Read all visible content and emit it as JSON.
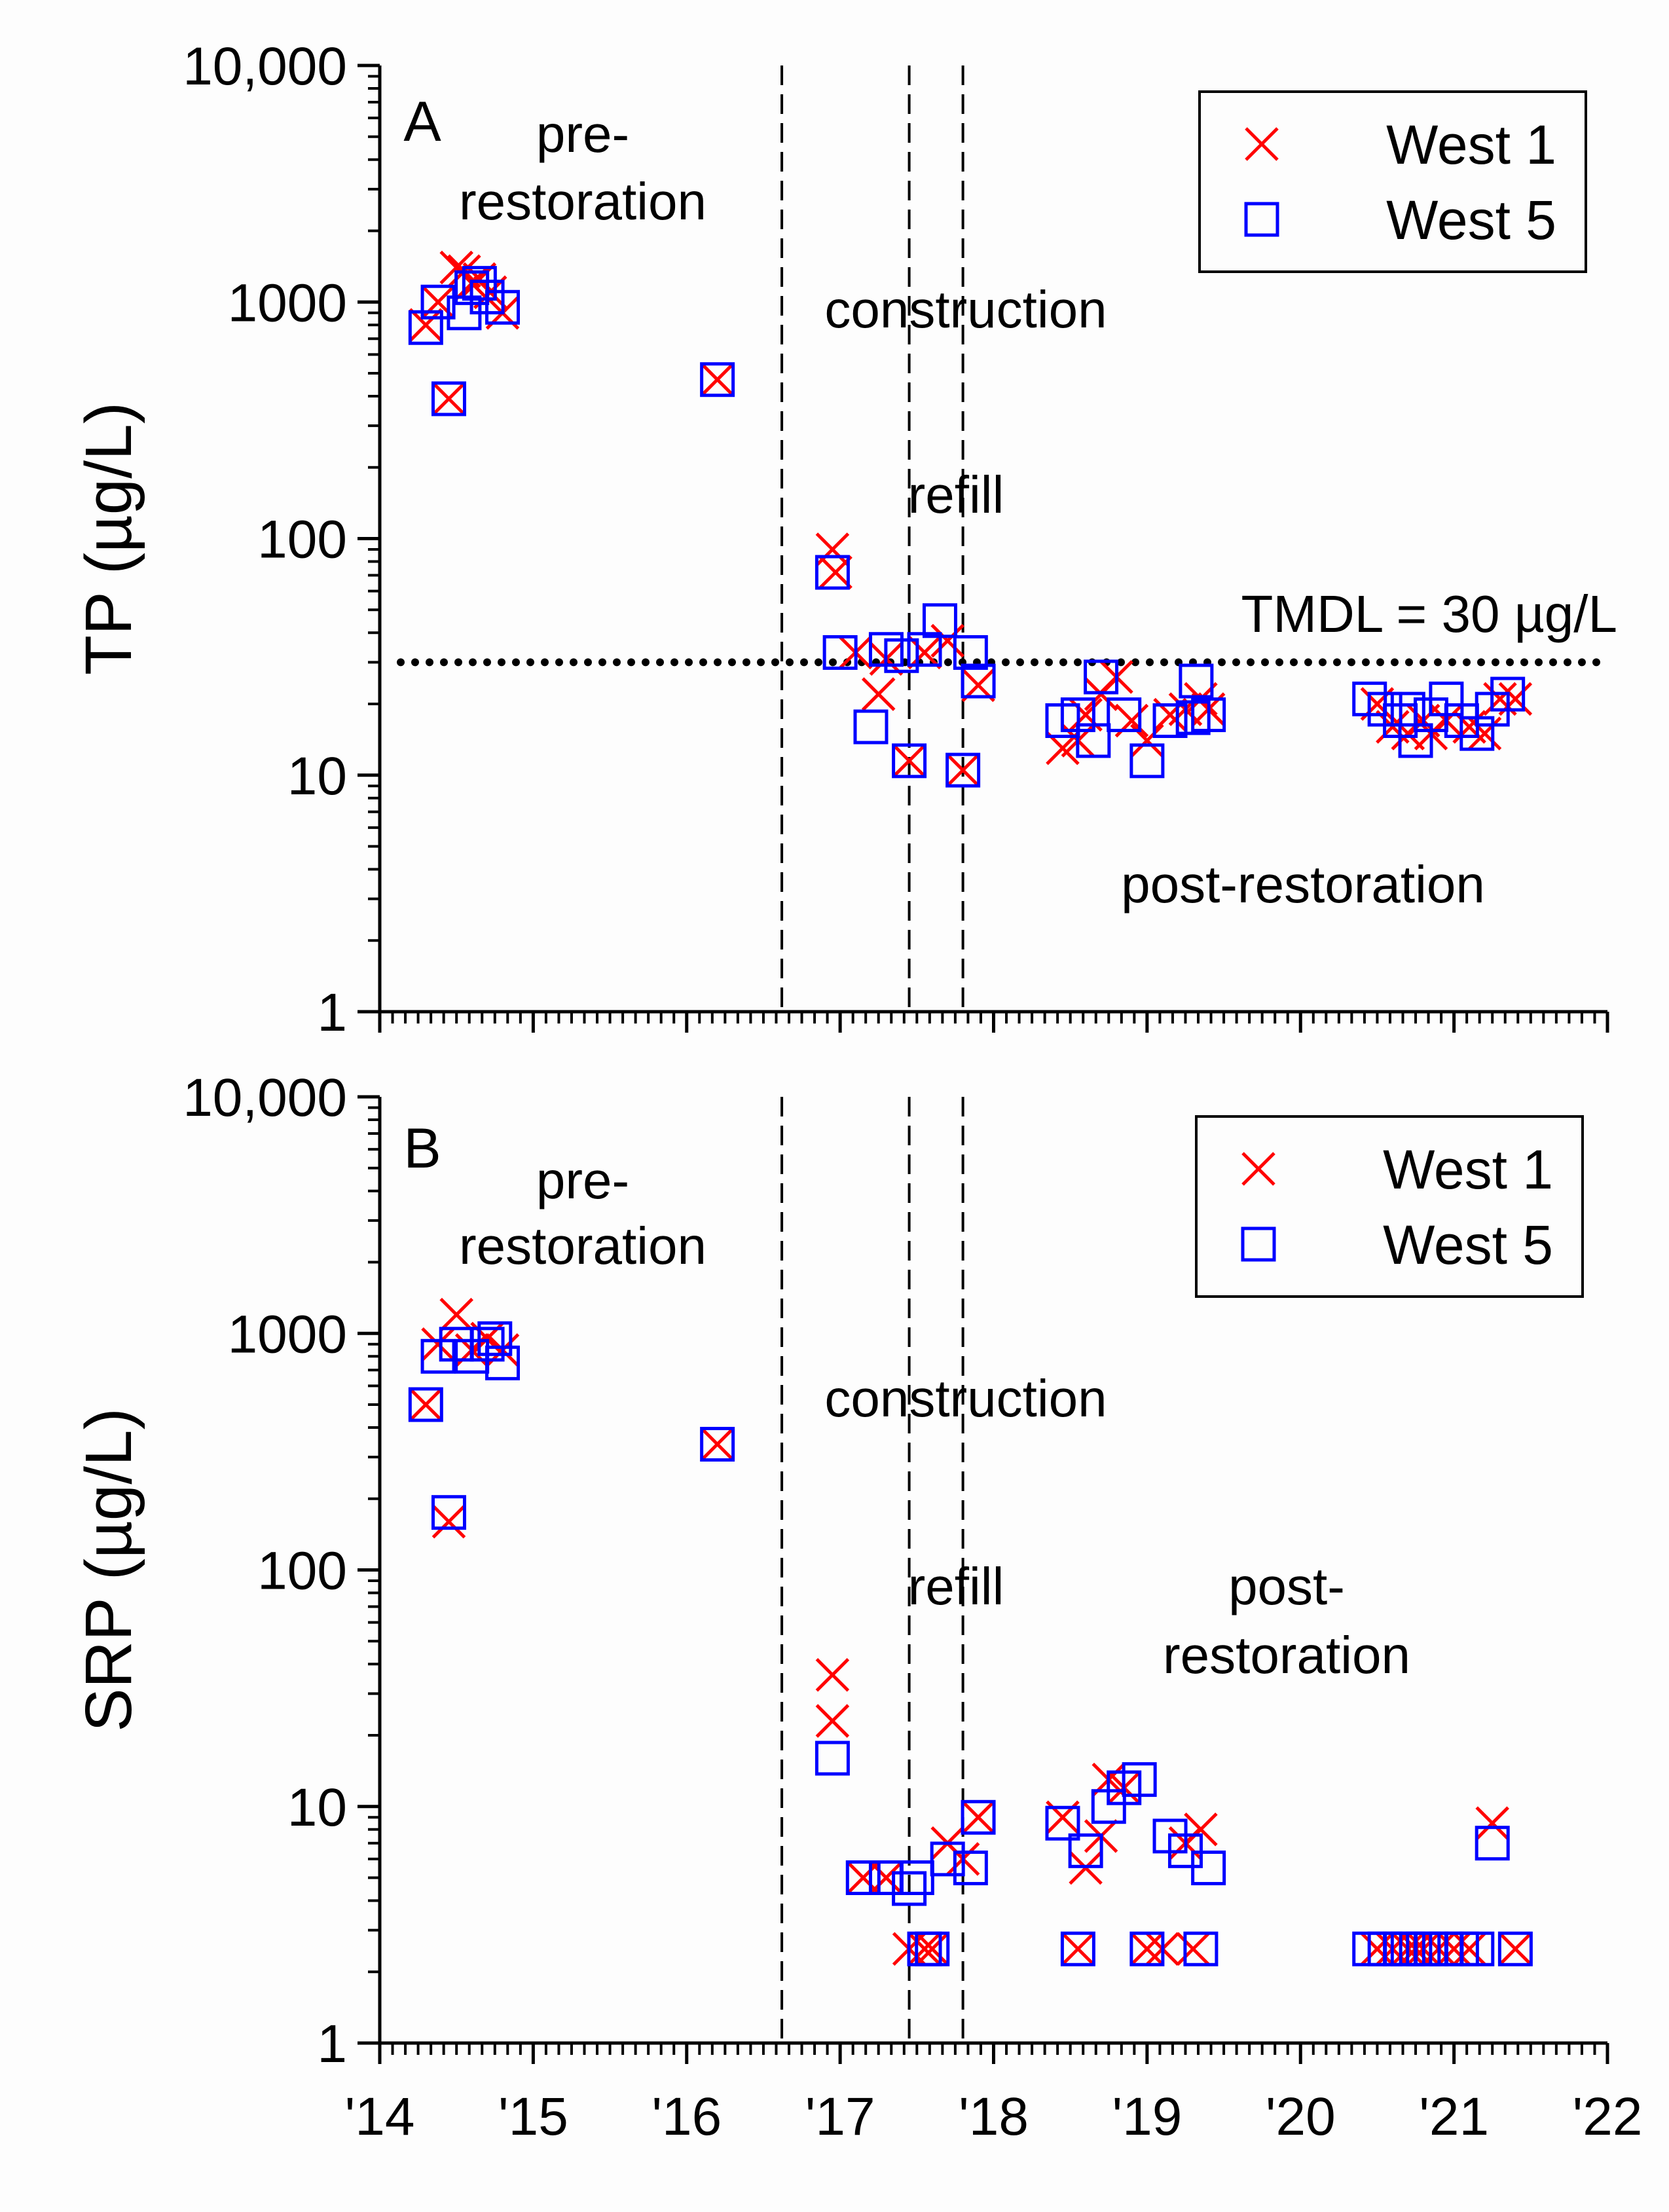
{
  "chart_data": [
    {
      "type": "scatter",
      "panel_label": "A",
      "ylabel": "TP (µg/L)",
      "yscale": "log",
      "ylim": [
        1,
        10000
      ],
      "xlim": [
        2014,
        2022
      ],
      "yticks": [
        {
          "value": 1,
          "label": "1"
        },
        {
          "value": 10,
          "label": "10"
        },
        {
          "value": 100,
          "label": "100"
        },
        {
          "value": 1000,
          "label": "1000"
        },
        {
          "value": 10000,
          "label": "10,000"
        }
      ],
      "phase_lines": [
        2016.62,
        2017.45,
        2017.8
      ],
      "reference_line": {
        "value": 30,
        "label": "TMDL = 30 µg/L"
      },
      "annotations": [
        {
          "id": "pre1",
          "text": "pre-"
        },
        {
          "id": "pre2",
          "text": "restoration"
        },
        {
          "id": "construction",
          "text": "construction"
        },
        {
          "id": "refill",
          "text": "refill"
        },
        {
          "id": "post",
          "text": "post-restoration"
        }
      ],
      "legend": [
        {
          "name": "West 1",
          "marker": "x",
          "color": "#ff0000"
        },
        {
          "name": "West 5",
          "marker": "square",
          "color": "#0000ff"
        }
      ],
      "series": [
        {
          "name": "West 1",
          "marker": "x",
          "color": "#ff0000",
          "points": [
            [
              2014.3,
              800
            ],
            [
              2014.38,
              1000
            ],
            [
              2014.45,
              390
            ],
            [
              2014.5,
              1400
            ],
            [
              2014.55,
              1350
            ],
            [
              2014.6,
              1200
            ],
            [
              2014.65,
              1250
            ],
            [
              2014.72,
              1100
            ],
            [
              2014.8,
              900
            ],
            [
              2016.2,
              470
            ],
            [
              2016.95,
              90
            ],
            [
              2016.97,
              72
            ],
            [
              2017.1,
              33
            ],
            [
              2017.25,
              22
            ],
            [
              2017.3,
              31
            ],
            [
              2017.45,
              11.5
            ],
            [
              2017.55,
              33
            ],
            [
              2017.7,
              37
            ],
            [
              2017.8,
              10.5
            ],
            [
              2017.9,
              24
            ],
            [
              2018.45,
              13
            ],
            [
              2018.55,
              14
            ],
            [
              2018.6,
              18
            ],
            [
              2018.7,
              22
            ],
            [
              2018.8,
              26
            ],
            [
              2018.9,
              17
            ],
            [
              2019.0,
              14
            ],
            [
              2019.15,
              18
            ],
            [
              2019.25,
              19
            ],
            [
              2019.35,
              21
            ],
            [
              2019.4,
              19
            ],
            [
              2020.5,
              20
            ],
            [
              2020.6,
              16
            ],
            [
              2020.7,
              15
            ],
            [
              2020.8,
              17
            ],
            [
              2020.85,
              15
            ],
            [
              2020.95,
              17
            ],
            [
              2021.1,
              16
            ],
            [
              2021.2,
              15
            ],
            [
              2021.3,
              21
            ],
            [
              2021.4,
              21
            ]
          ]
        },
        {
          "name": "West 5",
          "marker": "square",
          "color": "#0000ff",
          "points": [
            [
              2014.3,
              780
            ],
            [
              2014.38,
              1000
            ],
            [
              2014.45,
              390
            ],
            [
              2014.55,
              900
            ],
            [
              2014.6,
              1150
            ],
            [
              2014.65,
              1200
            ],
            [
              2014.7,
              1050
            ],
            [
              2014.8,
              950
            ],
            [
              2016.2,
              470
            ],
            [
              2016.95,
              72
            ],
            [
              2017.0,
              33
            ],
            [
              2017.2,
              16
            ],
            [
              2017.3,
              34
            ],
            [
              2017.4,
              32
            ],
            [
              2017.45,
              11.5
            ],
            [
              2017.55,
              34
            ],
            [
              2017.65,
              45
            ],
            [
              2017.8,
              10.5
            ],
            [
              2017.85,
              33
            ],
            [
              2017.9,
              25
            ],
            [
              2018.45,
              17
            ],
            [
              2018.55,
              18
            ],
            [
              2018.65,
              14
            ],
            [
              2018.7,
              26
            ],
            [
              2018.85,
              18
            ],
            [
              2019.0,
              11.5
            ],
            [
              2019.15,
              17
            ],
            [
              2019.3,
              17.5
            ],
            [
              2019.32,
              25
            ],
            [
              2019.4,
              18
            ],
            [
              2020.45,
              21
            ],
            [
              2020.55,
              19
            ],
            [
              2020.65,
              17
            ],
            [
              2020.7,
              19
            ],
            [
              2020.75,
              14
            ],
            [
              2020.85,
              18
            ],
            [
              2020.95,
              21
            ],
            [
              2021.05,
              17
            ],
            [
              2021.15,
              15
            ],
            [
              2021.25,
              19
            ],
            [
              2021.35,
              22
            ]
          ]
        }
      ]
    },
    {
      "type": "scatter",
      "panel_label": "B",
      "ylabel": "SRP (µg/L)",
      "yscale": "log",
      "ylim": [
        1,
        10000
      ],
      "xlim": [
        2014,
        2022
      ],
      "xlabel": "",
      "xtick_labels": [
        {
          "value": 2014,
          "label": "'14"
        },
        {
          "value": 2015,
          "label": "'15"
        },
        {
          "value": 2016,
          "label": "'16"
        },
        {
          "value": 2017,
          "label": "'17"
        },
        {
          "value": 2018,
          "label": "'18"
        },
        {
          "value": 2019,
          "label": "'19"
        },
        {
          "value": 2020,
          "label": "'20"
        },
        {
          "value": 2021,
          "label": "'21"
        },
        {
          "value": 2022,
          "label": "'22"
        }
      ],
      "yticks": [
        {
          "value": 1,
          "label": "1"
        },
        {
          "value": 10,
          "label": "10"
        },
        {
          "value": 100,
          "label": "100"
        },
        {
          "value": 1000,
          "label": "1000"
        },
        {
          "value": 10000,
          "label": "10,000"
        }
      ],
      "phase_lines": [
        2016.62,
        2017.45,
        2017.8
      ],
      "annotations": [
        {
          "id": "pre1",
          "text": "pre-"
        },
        {
          "id": "pre2",
          "text": "restoration"
        },
        {
          "id": "construction",
          "text": "construction"
        },
        {
          "id": "refill",
          "text": "refill"
        },
        {
          "id": "post1",
          "text": "post-"
        },
        {
          "id": "post2",
          "text": "restoration"
        }
      ],
      "legend": [
        {
          "name": "West 1",
          "marker": "x",
          "color": "#ff0000"
        },
        {
          "name": "West 5",
          "marker": "square",
          "color": "#0000ff"
        }
      ],
      "series": [
        {
          "name": "West 1",
          "marker": "x",
          "color": "#ff0000",
          "points": [
            [
              2014.3,
              500
            ],
            [
              2014.38,
              900
            ],
            [
              2014.45,
              160
            ],
            [
              2014.5,
              1200
            ],
            [
              2014.6,
              850
            ],
            [
              2014.7,
              950
            ],
            [
              2014.8,
              850
            ],
            [
              2016.2,
              340
            ],
            [
              2016.95,
              36
            ],
            [
              2016.95,
              23
            ],
            [
              2017.15,
              5
            ],
            [
              2017.3,
              5
            ],
            [
              2017.45,
              2.5
            ],
            [
              2017.55,
              2.5
            ],
            [
              2017.6,
              2.5
            ],
            [
              2017.7,
              7
            ],
            [
              2017.8,
              6
            ],
            [
              2017.9,
              9
            ],
            [
              2018.45,
              9
            ],
            [
              2018.55,
              2.5
            ],
            [
              2018.6,
              5.5
            ],
            [
              2018.7,
              7.5
            ],
            [
              2018.75,
              13
            ],
            [
              2018.85,
              12
            ],
            [
              2019.0,
              2.5
            ],
            [
              2019.1,
              2.5
            ],
            [
              2019.25,
              7
            ],
            [
              2019.3,
              2.5
            ],
            [
              2019.35,
              8
            ],
            [
              2020.5,
              2.5
            ],
            [
              2020.6,
              2.5
            ],
            [
              2020.7,
              2.5
            ],
            [
              2020.75,
              2.5
            ],
            [
              2020.8,
              2.5
            ],
            [
              2020.9,
              2.5
            ],
            [
              2021.0,
              2.5
            ],
            [
              2021.1,
              2.5
            ],
            [
              2021.25,
              8.5
            ],
            [
              2021.4,
              2.5
            ]
          ]
        },
        {
          "name": "West 5",
          "marker": "square",
          "color": "#0000ff",
          "points": [
            [
              2014.3,
              500
            ],
            [
              2014.38,
              800
            ],
            [
              2014.45,
              175
            ],
            [
              2014.5,
              900
            ],
            [
              2014.6,
              800
            ],
            [
              2014.7,
              900
            ],
            [
              2014.75,
              950
            ],
            [
              2014.8,
              750
            ],
            [
              2016.2,
              340
            ],
            [
              2016.95,
              16
            ],
            [
              2017.15,
              5
            ],
            [
              2017.3,
              5
            ],
            [
              2017.45,
              4.5
            ],
            [
              2017.5,
              5
            ],
            [
              2017.55,
              2.5
            ],
            [
              2017.6,
              2.5
            ],
            [
              2017.7,
              6
            ],
            [
              2017.85,
              5.5
            ],
            [
              2017.9,
              9
            ],
            [
              2018.45,
              8.5
            ],
            [
              2018.55,
              2.5
            ],
            [
              2018.6,
              6.5
            ],
            [
              2018.75,
              10
            ],
            [
              2018.85,
              12
            ],
            [
              2018.95,
              13
            ],
            [
              2019.0,
              2.5
            ],
            [
              2019.15,
              7.5
            ],
            [
              2019.25,
              6.5
            ],
            [
              2019.35,
              2.5
            ],
            [
              2019.4,
              5.5
            ],
            [
              2020.45,
              2.5
            ],
            [
              2020.55,
              2.5
            ],
            [
              2020.65,
              2.5
            ],
            [
              2020.7,
              2.5
            ],
            [
              2020.8,
              2.5
            ],
            [
              2020.85,
              2.5
            ],
            [
              2020.95,
              2.5
            ],
            [
              2021.05,
              2.5
            ],
            [
              2021.15,
              2.5
            ],
            [
              2021.25,
              7
            ],
            [
              2021.4,
              2.5
            ]
          ]
        }
      ]
    }
  ]
}
